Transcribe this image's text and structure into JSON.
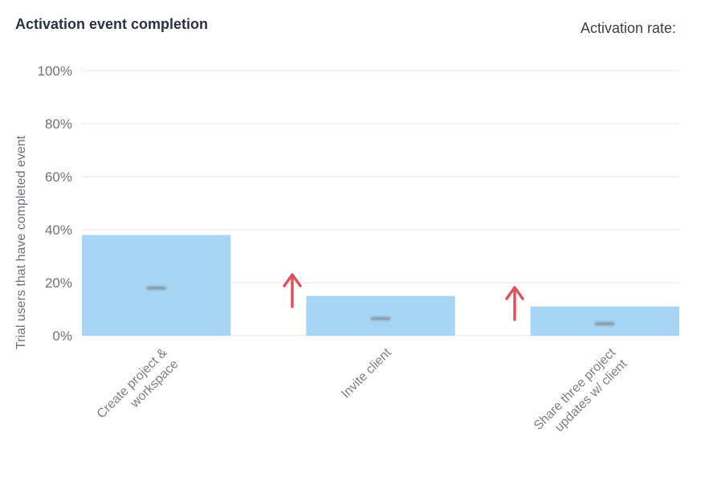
{
  "title": "Activation event completion",
  "activation_rate": {
    "label": "Activation rate:",
    "value": "",
    "value_obscured": true
  },
  "chart_data": {
    "type": "bar",
    "categories": [
      [
        "Create project &",
        "workspace"
      ],
      [
        "Invite client"
      ],
      [
        "Share three project",
        "updates w/ client"
      ]
    ],
    "values": [
      38,
      15,
      11
    ],
    "data_labels_obscured": true,
    "ylabel": "Trial users that have completed event",
    "ylim": [
      0,
      100
    ],
    "yticks": [
      0,
      20,
      40,
      60,
      80,
      100
    ],
    "ytick_labels": [
      "0%",
      "20%",
      "40%",
      "60%",
      "80%",
      "100%"
    ],
    "grid": true,
    "bar_color": "#a8d5f4",
    "grid_color": "#e3e6ea",
    "annotations": [
      {
        "type": "up-arrow",
        "between": [
          0,
          1
        ],
        "color": "#d9545c"
      },
      {
        "type": "up-arrow",
        "between": [
          1,
          2
        ],
        "color": "#d9545c"
      }
    ]
  }
}
